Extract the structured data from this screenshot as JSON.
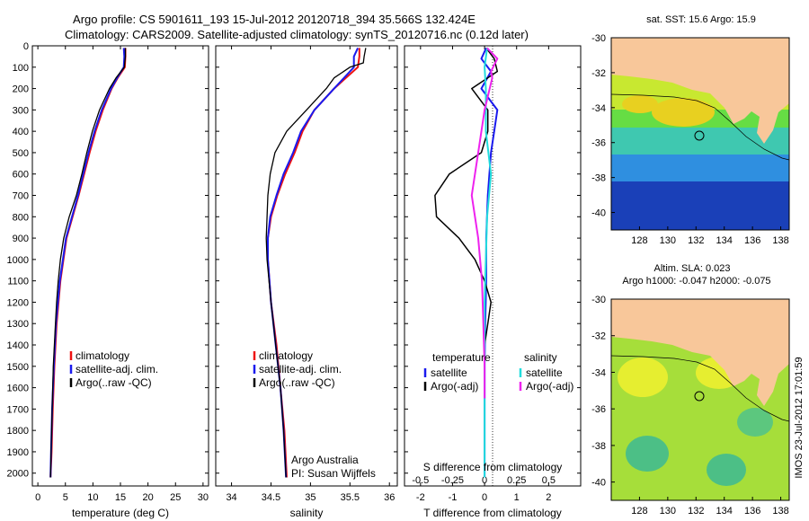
{
  "header": {
    "line1": "Argo profile: CS 5901611_193 15-Jul-2012 20120718_394 35.566S 132.424E",
    "line2": "Climatology: CARS2009. Satellite-adjusted climatology: synTS_20120716.nc (0.12d later)"
  },
  "colors": {
    "climatology": "#ee1111",
    "satellite": "#1a1aee",
    "argo": "#000000",
    "sal_satellite": "#22dddd",
    "sal_argo": "#ee22ee",
    "land": "#f8c79a"
  },
  "depth_axis": {
    "ticks": [
      0,
      100,
      200,
      300,
      400,
      500,
      600,
      700,
      800,
      900,
      1000,
      1100,
      1200,
      1300,
      1400,
      1500,
      1600,
      1700,
      1800,
      1900,
      2000
    ],
    "min": 0,
    "max": 2060
  },
  "credit": "IMOS 23-Jul-2012 17:01:59",
  "chart_data": [
    {
      "type": "line",
      "xlabel": "temperature (deg C)",
      "xlim": [
        -1,
        31
      ],
      "xticks": [
        0,
        5,
        10,
        15,
        20,
        25,
        30
      ],
      "y_reversed": true,
      "legend": {
        "placement": "lower-center",
        "entries": [
          "climatology",
          "satellite-adj. clim.",
          "Argo(..raw -QC)"
        ]
      },
      "series": [
        {
          "name": "climatology",
          "color": "#ee1111",
          "width": 2,
          "depth": [
            10,
            50,
            100,
            150,
            200,
            300,
            400,
            500,
            700,
            900,
            1100,
            1300,
            1500,
            1700,
            1900,
            2020
          ],
          "values": [
            15.9,
            15.9,
            15.8,
            14.5,
            13.4,
            11.8,
            10.5,
            9.4,
            7.4,
            5.2,
            4.1,
            3.4,
            3.0,
            2.7,
            2.5,
            2.3
          ]
        },
        {
          "name": "satellite-adj. clim.",
          "color": "#1a1aee",
          "width": 2,
          "depth": [
            10,
            50,
            100,
            150,
            200,
            300,
            400,
            500,
            700,
            900,
            1100,
            1300,
            1500,
            1700,
            1900,
            2020
          ],
          "values": [
            15.6,
            15.7,
            15.6,
            14.4,
            13.3,
            11.6,
            10.3,
            9.2,
            7.3,
            5.1,
            4.0,
            3.3,
            2.9,
            2.6,
            2.4,
            2.3
          ]
        },
        {
          "name": "Argo(..raw -QC)",
          "color": "#000000",
          "width": 1.3,
          "depth": [
            10,
            50,
            100,
            150,
            200,
            300,
            400,
            500,
            600,
            700,
            800,
            900,
            1000,
            1100,
            1200,
            1300,
            1400,
            1500,
            1600,
            1700,
            1800,
            1900,
            2020
          ],
          "values": [
            15.9,
            15.9,
            15.7,
            14.2,
            13.0,
            11.2,
            9.9,
            8.9,
            8.0,
            7.0,
            5.7,
            4.7,
            4.1,
            3.7,
            3.4,
            3.2,
            3.0,
            2.8,
            2.7,
            2.6,
            2.5,
            2.4,
            2.3
          ]
        }
      ]
    },
    {
      "type": "line",
      "xlabel": "salinity",
      "xlim": [
        33.8,
        36.1
      ],
      "xticks": [
        34,
        34.5,
        35,
        35.5,
        36
      ],
      "y_reversed": true,
      "legend": {
        "placement": "lower-center",
        "entries": [
          "climatology",
          "satellite-adj. clim.",
          "Argo(..raw -QC)"
        ]
      },
      "annotations": [
        "Argo Australia",
        "PI: Susan Wijffels"
      ],
      "series": [
        {
          "name": "climatology",
          "color": "#ee1111",
          "width": 2,
          "depth": [
            10,
            50,
            100,
            200,
            300,
            400,
            500,
            600,
            700,
            800,
            900,
            1000,
            1200,
            1400,
            1600,
            1800,
            2020
          ],
          "values": [
            35.62,
            35.62,
            35.6,
            35.3,
            35.05,
            34.9,
            34.8,
            34.68,
            34.58,
            34.5,
            34.46,
            34.46,
            34.5,
            34.57,
            34.62,
            34.67,
            34.7
          ]
        },
        {
          "name": "satellite-adj. clim.",
          "color": "#1a1aee",
          "width": 2,
          "depth": [
            10,
            50,
            100,
            200,
            300,
            400,
            500,
            600,
            700,
            800,
            900,
            1000,
            1200,
            1400,
            1600,
            1800,
            2020
          ],
          "values": [
            35.6,
            35.55,
            35.55,
            35.3,
            35.05,
            34.88,
            34.78,
            34.66,
            34.57,
            34.49,
            34.46,
            34.46,
            34.5,
            34.56,
            34.62,
            34.66,
            34.69
          ]
        },
        {
          "name": "Argo(..raw -QC)",
          "color": "#000000",
          "width": 1.3,
          "depth": [
            10,
            50,
            80,
            100,
            150,
            200,
            300,
            400,
            500,
            600,
            700,
            800,
            900,
            1000,
            1200,
            1400,
            1600,
            1800,
            2020
          ],
          "values": [
            35.7,
            35.68,
            35.67,
            35.5,
            35.3,
            35.2,
            34.95,
            34.7,
            34.55,
            34.49,
            34.46,
            34.45,
            34.44,
            34.45,
            34.5,
            34.56,
            34.62,
            34.66,
            34.69
          ]
        }
      ]
    },
    {
      "type": "line",
      "xlabel": "T difference from climatology",
      "xlim": [
        -2.5,
        3.0
      ],
      "xticks": [
        -2,
        -1,
        0,
        1,
        2
      ],
      "secondary_axis": {
        "label": "S difference from climatology",
        "ticks": [
          -0.5,
          -0.25,
          0,
          0.25,
          0.5
        ],
        "ratio": 4
      },
      "y_reversed": true,
      "legend": {
        "placement": "lower-center",
        "groups": [
          "temperature",
          "salinity"
        ],
        "entries": [
          "satellite",
          "Argo(-adj)",
          "satellite",
          "Argo(-adj)"
        ]
      },
      "series": [
        {
          "name": "satellite",
          "group": "temperature",
          "color": "#1a1aee",
          "width": 2,
          "depth": [
            10,
            60,
            120,
            200,
            300,
            400,
            500,
            700,
            900,
            1100,
            1300,
            1500,
            1700,
            2020
          ],
          "values": [
            0.05,
            -0.1,
            0.2,
            -0.1,
            0.4,
            0.3,
            0.2,
            0.1,
            0.05,
            0.05,
            0.02,
            0.0,
            0.0,
            0.0
          ]
        },
        {
          "name": "Argo(-adj)",
          "group": "temperature",
          "color": "#000000",
          "width": 1.5,
          "depth": [
            10,
            60,
            120,
            200,
            300,
            400,
            500,
            600,
            700,
            800,
            900,
            1000,
            1100,
            1200,
            1300,
            1400,
            1500
          ],
          "values": [
            0.05,
            0.3,
            0.4,
            -0.4,
            0.1,
            0.1,
            -0.1,
            -1.1,
            -1.55,
            -1.5,
            -0.8,
            -0.3,
            0.0,
            0.2,
            0.1,
            0.0,
            0.0
          ]
        },
        {
          "name": "satellite",
          "group": "salinity",
          "color": "#22dddd",
          "width": 2,
          "depth": [
            10,
            100,
            200,
            400,
            600,
            800,
            1000,
            1200,
            1400,
            1600,
            1800,
            2020
          ],
          "values": [
            0.02,
            0.0,
            0.01,
            0.01,
            0.05,
            0.02,
            0.01,
            0.0,
            0.0,
            0.0,
            0.0,
            0.0
          ]
        },
        {
          "name": "Argo(-adj)",
          "group": "salinity",
          "color": "#ee22ee",
          "width": 2,
          "depth": [
            10,
            60,
            120,
            150,
            300,
            500,
            700,
            900,
            1100,
            1300,
            1500,
            1650
          ],
          "values": [
            0.02,
            0.1,
            0.05,
            0.06,
            0.0,
            -0.05,
            -0.1,
            -0.05,
            -0.02,
            -0.01,
            0.0,
            0.0
          ]
        }
      ]
    },
    {
      "type": "heatmap",
      "title": "sat. SST: 15.6  Argo: 15.9",
      "xlim": [
        126,
        138.6
      ],
      "ylim": [
        -41,
        -30
      ],
      "xticks": [
        128,
        130,
        132,
        134,
        136,
        138
      ],
      "yticks": [
        -30,
        -32,
        -34,
        -36,
        -38,
        -40
      ],
      "marker": {
        "lon": 132.42,
        "lat": -35.57
      }
    },
    {
      "type": "heatmap",
      "title": "Altim. SLA: 0.023",
      "subtitle": "Argo h1000: -0.047 h2000: -0.075",
      "xlim": [
        126,
        138.6
      ],
      "ylim": [
        -41,
        -30
      ],
      "xticks": [
        128,
        130,
        132,
        134,
        136,
        138
      ],
      "yticks": [
        -30,
        -32,
        -34,
        -36,
        -38,
        -40
      ],
      "marker": {
        "lon": 132.42,
        "lat": -35.57
      }
    }
  ]
}
